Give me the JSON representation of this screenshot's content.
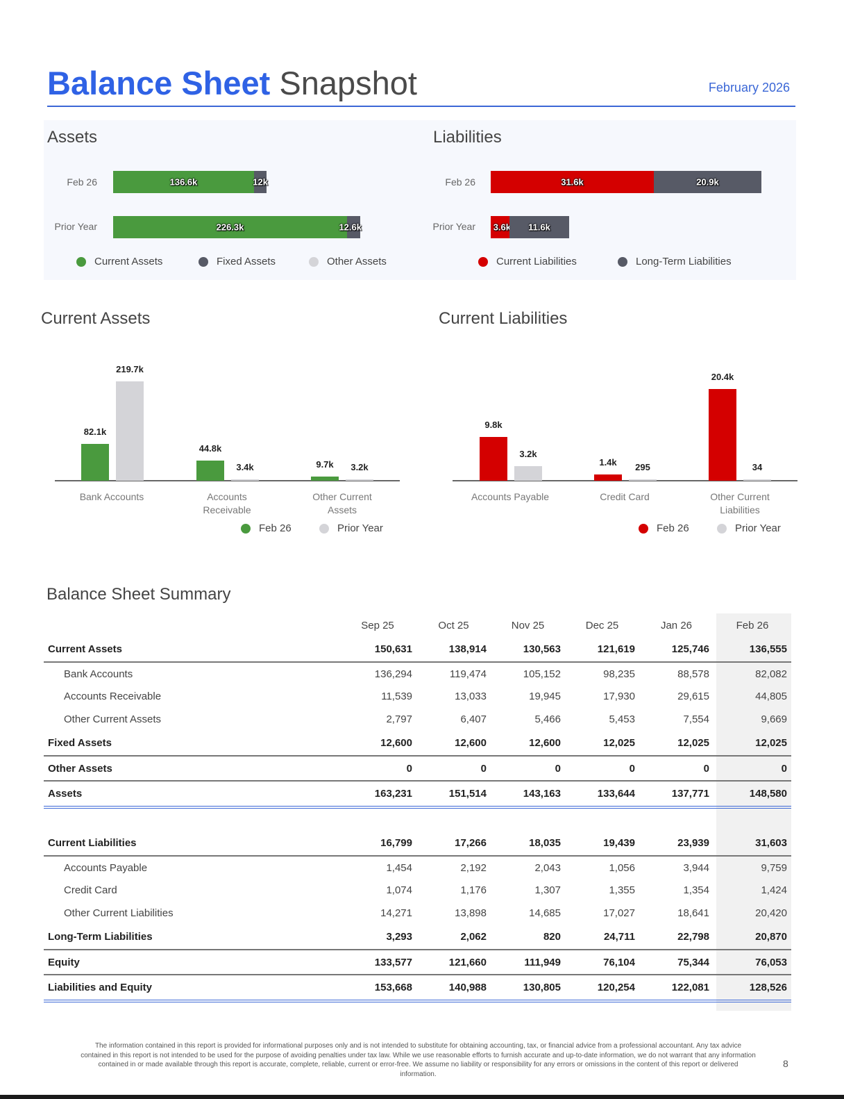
{
  "header": {
    "title_bold": "Balance Sheet",
    "title_light": " Snapshot",
    "date": "February 2026"
  },
  "colors": {
    "accent": "#2f62e5",
    "green": "#4a9a3e",
    "red": "#d40000",
    "dark": "#575a66",
    "grey": "#d4d4d8"
  },
  "assets_panel": {
    "title": "Assets",
    "rows": [
      {
        "label": "Feb 26",
        "segments": [
          {
            "name": "Current Assets",
            "value": 136555,
            "label": "136.6k"
          },
          {
            "name": "Fixed Assets",
            "value": 12025,
            "label": "12k"
          }
        ]
      },
      {
        "label": "Prior Year",
        "segments": [
          {
            "name": "Current Assets",
            "value": 226300,
            "label": "226.3k"
          },
          {
            "name": "Fixed Assets",
            "value": 12600,
            "label": "12.6k"
          }
        ]
      }
    ],
    "legend": [
      "Current Assets",
      "Fixed Assets",
      "Other Assets"
    ]
  },
  "liabilities_panel": {
    "title": "Liabilities",
    "rows": [
      {
        "label": "Feb 26",
        "segments": [
          {
            "name": "Current Liabilities",
            "value": 31603,
            "label": "31.6k"
          },
          {
            "name": "Long-Term Liabilities",
            "value": 20870,
            "label": "20.9k"
          }
        ]
      },
      {
        "label": "Prior Year",
        "segments": [
          {
            "name": "Current Liabilities",
            "value": 3600,
            "label": "3.6k"
          },
          {
            "name": "Long-Term Liabilities",
            "value": 11600,
            "label": "11.6k"
          }
        ]
      }
    ],
    "legend": [
      "Current Liabilities",
      "Long-Term Liabilities"
    ]
  },
  "chart_data": [
    {
      "type": "bar",
      "title": "Current Assets",
      "categories": [
        "Bank Accounts",
        "Accounts Receivable",
        "Other Current Assets"
      ],
      "series": [
        {
          "name": "Feb 26",
          "values": [
            82.1,
            44.8,
            9.7
          ],
          "labels": [
            "82.1k",
            "44.8k",
            "9.7k"
          ]
        },
        {
          "name": "Prior Year",
          "values": [
            219.7,
            3.4,
            3.2
          ],
          "labels": [
            "219.7k",
            "3.4k",
            "3.2k"
          ]
        }
      ],
      "ylim": [
        0,
        219.7
      ]
    },
    {
      "type": "bar",
      "title": "Current Liabilities",
      "categories": [
        "Accounts Payable",
        "Credit Card",
        "Other Current Liabilities"
      ],
      "series": [
        {
          "name": "Feb 26",
          "values": [
            9.8,
            1.4,
            20.4
          ],
          "labels": [
            "9.8k",
            "1.4k",
            "20.4k"
          ]
        },
        {
          "name": "Prior Year",
          "values": [
            3.2,
            0.295,
            0.034
          ],
          "labels": [
            "3.2k",
            "295",
            "34"
          ]
        }
      ],
      "ylim": [
        0,
        20.4
      ]
    }
  ],
  "summary": {
    "title": "Balance Sheet Summary",
    "columns": [
      "Sep 25",
      "Oct 25",
      "Nov 25",
      "Dec 25",
      "Jan 26",
      "Feb 26"
    ],
    "rows": [
      {
        "type": "main",
        "name": "Current Assets",
        "values": [
          "150,631",
          "138,914",
          "130,563",
          "121,619",
          "125,746",
          "136,555"
        ]
      },
      {
        "type": "sub",
        "name": "Bank Accounts",
        "values": [
          "136,294",
          "119,474",
          "105,152",
          "98,235",
          "88,578",
          "82,082"
        ]
      },
      {
        "type": "sub",
        "name": "Accounts Receivable",
        "values": [
          "11,539",
          "13,033",
          "19,945",
          "17,930",
          "29,615",
          "44,805"
        ]
      },
      {
        "type": "sub",
        "name": "Other Current Assets",
        "values": [
          "2,797",
          "6,407",
          "5,466",
          "5,453",
          "7,554",
          "9,669"
        ]
      },
      {
        "type": "main",
        "name": "Fixed Assets",
        "values": [
          "12,600",
          "12,600",
          "12,600",
          "12,025",
          "12,025",
          "12,025"
        ]
      },
      {
        "type": "main",
        "name": "Other Assets",
        "values": [
          "0",
          "0",
          "0",
          "0",
          "0",
          "0"
        ]
      },
      {
        "type": "total",
        "name": "Assets",
        "values": [
          "163,231",
          "151,514",
          "143,163",
          "133,644",
          "137,771",
          "148,580"
        ]
      },
      {
        "type": "spacer"
      },
      {
        "type": "main",
        "name": "Current Liabilities",
        "values": [
          "16,799",
          "17,266",
          "18,035",
          "19,439",
          "23,939",
          "31,603"
        ]
      },
      {
        "type": "sub",
        "name": "Accounts Payable",
        "values": [
          "1,454",
          "2,192",
          "2,043",
          "1,056",
          "3,944",
          "9,759"
        ]
      },
      {
        "type": "sub",
        "name": "Credit Card",
        "values": [
          "1,074",
          "1,176",
          "1,307",
          "1,355",
          "1,354",
          "1,424"
        ]
      },
      {
        "type": "sub",
        "name": "Other Current Liabilities",
        "values": [
          "14,271",
          "13,898",
          "14,685",
          "17,027",
          "18,641",
          "20,420"
        ]
      },
      {
        "type": "main",
        "name": "Long-Term Liabilities",
        "values": [
          "3,293",
          "2,062",
          "820",
          "24,711",
          "22,798",
          "20,870"
        ]
      },
      {
        "type": "main",
        "name": "Equity",
        "values": [
          "133,577",
          "121,660",
          "111,949",
          "76,104",
          "75,344",
          "76,053"
        ]
      },
      {
        "type": "total",
        "name": "Liabilities and Equity",
        "values": [
          "153,668",
          "140,988",
          "130,805",
          "120,254",
          "122,081",
          "128,526"
        ]
      }
    ]
  },
  "footer": {
    "disclaimer": "The information contained in this report is provided for informational purposes only and is not intended to substitute for obtaining accounting, tax, or financial advice from a professional accountant. Any tax advice contained in this report is not intended to be used for the purpose of avoiding penalties under tax law. While we use reasonable efforts to furnish accurate and up-to-date information, we do not warrant that any information contained in or made available through this report is accurate, complete, reliable, current or error-free. We assume no liability or responsibility for any errors or omissions in the content of this report or delivered information.",
    "page_number": "8"
  }
}
